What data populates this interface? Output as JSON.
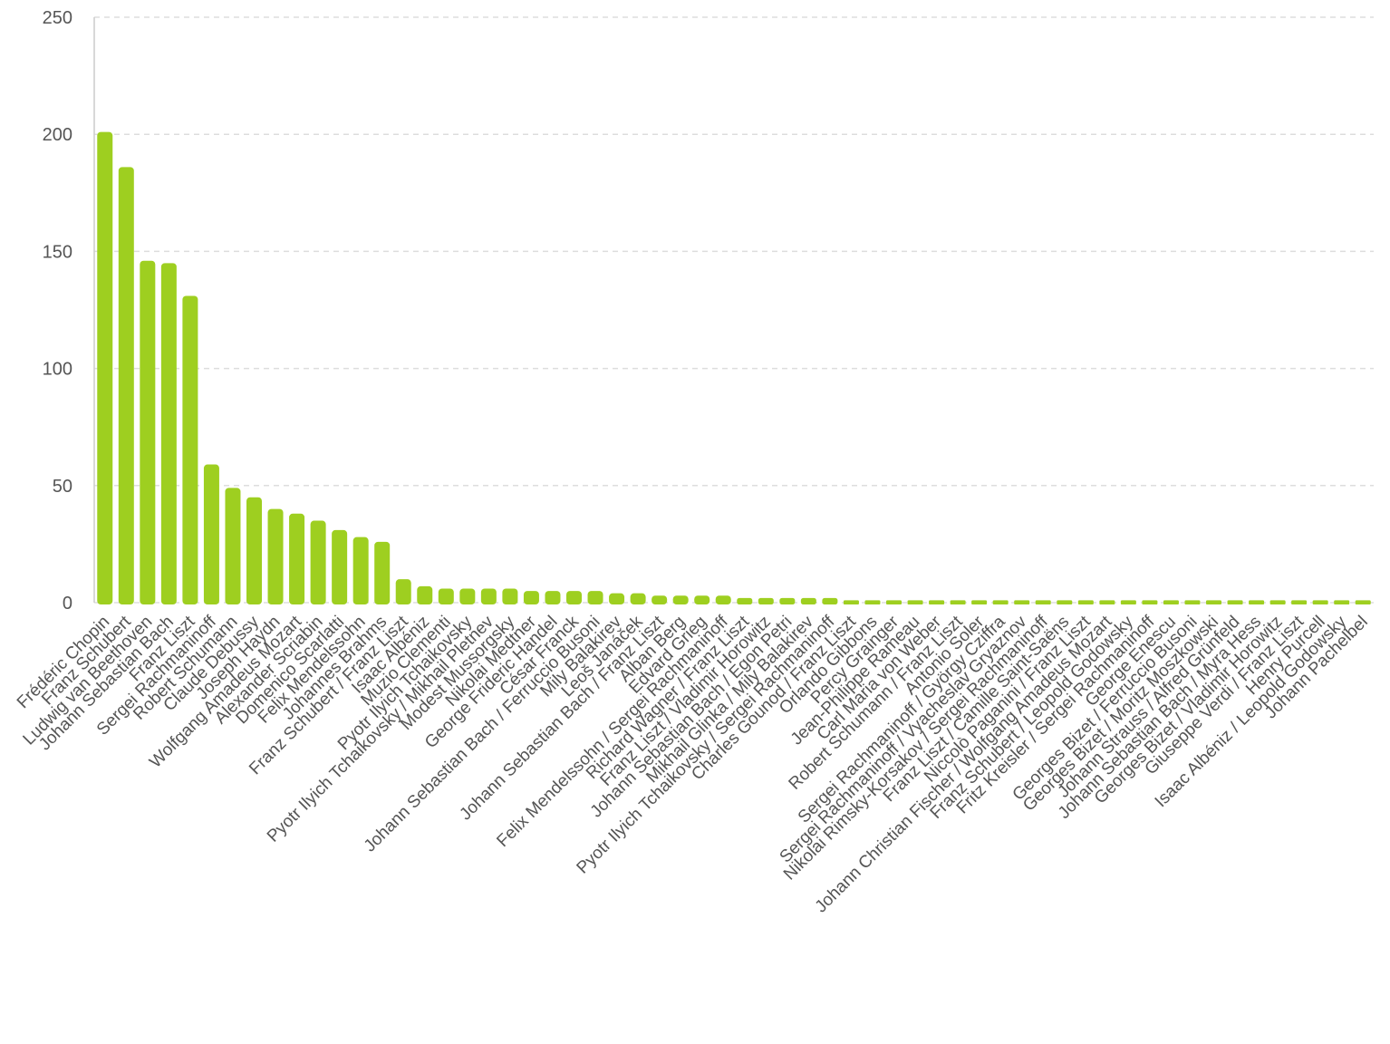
{
  "chart_data": {
    "type": "bar",
    "bar_color": "#9ecf20",
    "grid": true,
    "ylim": [
      0,
      250
    ],
    "yticks": [
      0,
      50,
      100,
      150,
      200,
      250
    ],
    "categories": [
      "Frédéric Chopin",
      "Franz Schubert",
      "Ludwig van Beethoven",
      "Johann Sebastian Bach",
      "Franz Liszt",
      "Sergei Rachmaninoff",
      "Robert Schumann",
      "Claude Debussy",
      "Joseph Haydn",
      "Wolfgang Amadeus Mozart",
      "Alexander Scriabin",
      "Domenico Scarlatti",
      "Felix Mendelssohn",
      "Johannes Brahms",
      "Franz Schubert / Franz Liszt",
      "Isaac Albéniz",
      "Muzio Clementi",
      "Pyotr Ilyich Tchaikovsky",
      "Pyotr Ilyich Tchaikovsky / Mikhail Pletnev",
      "Modest Mussorgsky",
      "Nikolai Medtner",
      "George Frideric Handel",
      "César Franck",
      "Johann Sebastian Bach / Ferruccio Busoni",
      "Mily Balakirev",
      "Leoš Janáček",
      "Johann Sebastian Bach / Franz Liszt",
      "Alban Berg",
      "Edvard Grieg",
      "Felix Mendelssohn / Sergei Rachmaninoff",
      "Richard Wagner / Franz Liszt",
      "Franz Liszt / Vladimir Horowitz",
      "Johann Sebastian Bach / Egon Petri",
      "Mikhail Glinka / Mily Balakirev",
      "Pyotr Ilyich Tchaikovsky / Sergei Rachmaninoff",
      "Charles Gounod / Franz Liszt",
      "Orlando Gibbons",
      "Percy Grainger",
      "Jean-Philippe Rameau",
      "Carl Maria von Weber",
      "Robert Schumann / Franz Liszt",
      "Antonio Soler",
      "Sergei Rachmaninoff / György Cziffra",
      "Sergei Rachmaninoff / Vyacheslav Gryaznov",
      "Nikolai Rimsky-Korsakov / Sergei Rachmaninoff",
      "Franz Liszt / Camille Saint-Saëns",
      "Niccolò Paganini / Franz Liszt",
      "Johann Christian Fischer / Wolfgang Amadeus Mozart",
      "Franz Schubert / Leopold Godowsky",
      "Fritz Kreisler / Sergei Rachmaninoff",
      "George Enescu",
      "Georges Bizet / Ferruccio Busoni",
      "Georges Bizet / Moritz Moszkowski",
      "Johann Strauss / Alfred Grünfeld",
      "Johann Sebastian Bach / Myra Hess",
      "Georges Bizet / Vladimir Horowitz",
      "Giuseppe Verdi / Franz Liszt",
      "Henry Purcell",
      "Isaac Albéniz / Leopold Godowsky",
      "Johann Pachelbel"
    ],
    "values": [
      201,
      186,
      146,
      145,
      131,
      59,
      49,
      45,
      40,
      38,
      35,
      31,
      28,
      26,
      10,
      7,
      6,
      6,
      6,
      6,
      5,
      5,
      5,
      5,
      4,
      4,
      3,
      3,
      3,
      3,
      2,
      2,
      2,
      2,
      2,
      1,
      1,
      1,
      1,
      1,
      1,
      1,
      1,
      1,
      1,
      1,
      1,
      1,
      1,
      1,
      1,
      1,
      1,
      1,
      1,
      1,
      1,
      1,
      1,
      1
    ]
  }
}
